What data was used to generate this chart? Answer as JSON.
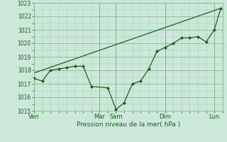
{
  "bg_color": "#cce8d8",
  "grid_major_color": "#88b898",
  "grid_minor_color": "#aad0bc",
  "line_color": "#1a6020",
  "xlabel": "Pression niveau de la mer( hPa )",
  "ylim": [
    1015,
    1023
  ],
  "yticks": [
    1015,
    1016,
    1017,
    1018,
    1019,
    1020,
    1021,
    1022,
    1023
  ],
  "day_labels": [
    "Ven",
    "Mar",
    "Sam",
    "Dim",
    "Lun"
  ],
  "day_positions": [
    0,
    4,
    5,
    8,
    11
  ],
  "xlim": [
    0,
    11.5
  ],
  "line1_x": [
    0,
    0.5,
    1.0,
    1.5,
    2.0,
    2.5,
    3.0,
    3.5,
    4.5,
    5.0,
    5.5,
    6.0,
    6.5,
    7.0,
    7.5,
    8.0,
    8.5,
    9.0,
    9.5,
    10.0,
    10.5,
    11.0,
    11.4
  ],
  "line1_y": [
    1017.4,
    1017.2,
    1018.0,
    1018.1,
    1018.2,
    1018.3,
    1018.3,
    1016.8,
    1016.7,
    1015.1,
    1015.6,
    1017.0,
    1017.2,
    1018.1,
    1019.4,
    1019.7,
    1020.0,
    1020.4,
    1020.4,
    1020.5,
    1020.1,
    1021.0,
    1022.6
  ],
  "line2_x": [
    0,
    11.4
  ],
  "line2_y": [
    1017.8,
    1022.6
  ],
  "ylabel_fontsize": 5.5,
  "xlabel_fontsize": 6.5,
  "xtick_fontsize": 6.0
}
